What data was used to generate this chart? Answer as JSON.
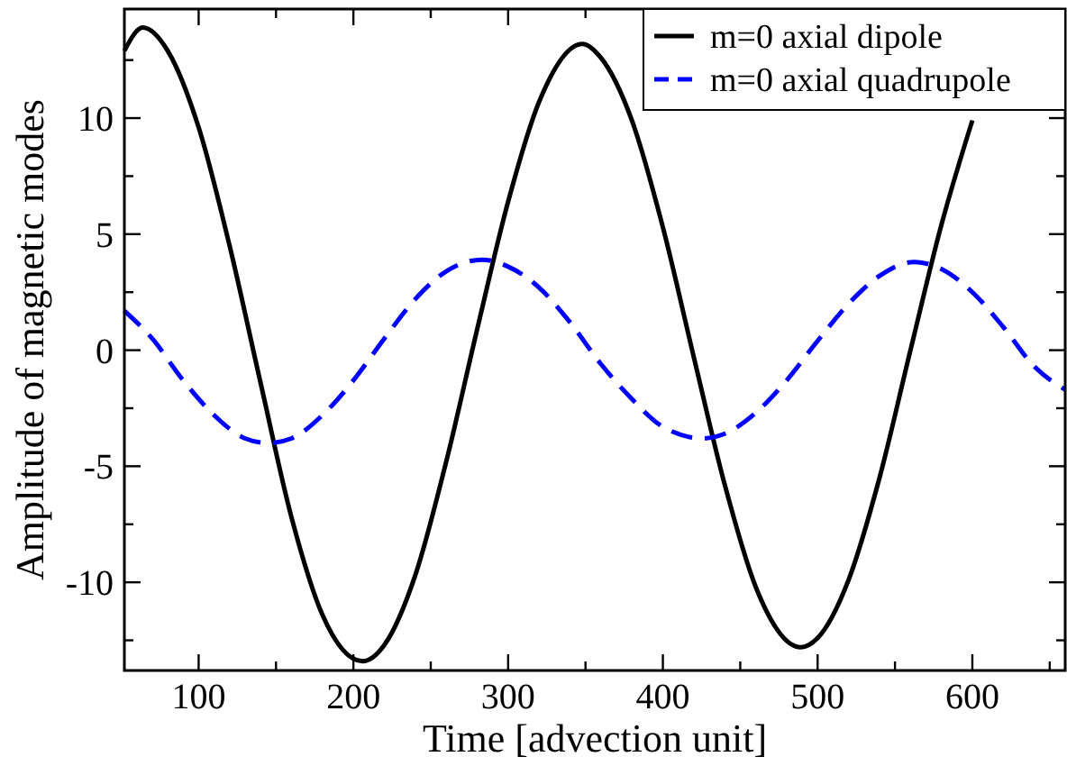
{
  "chart_data": {
    "type": "line",
    "xlabel": "Time [advection unit]",
    "ylabel": "Amplitude of magnetic modes",
    "xlim": [
      52,
      660
    ],
    "ylim": [
      -13.8,
      14.7
    ],
    "xticks": [
      100,
      {
        "value": 150,
        "label": null
      },
      200,
      {
        "value": 250,
        "label": null
      },
      300,
      {
        "value": 350,
        "label": null
      },
      400,
      {
        "value": 450,
        "label": null
      },
      500,
      {
        "value": 550,
        "label": null
      },
      600,
      {
        "value": 650,
        "label": null
      }
    ],
    "yticks": [
      {
        "value": -12.5,
        "label": null
      },
      -10,
      {
        "value": -7.5,
        "label": null
      },
      -5,
      {
        "value": -2.5,
        "label": null
      },
      0,
      {
        "value": 2.5,
        "label": null
      },
      5,
      {
        "value": 7.5,
        "label": null
      },
      10,
      {
        "value": 12.5,
        "label": null
      }
    ],
    "grid": false,
    "legend": "top right",
    "marker": "none",
    "series": [
      {
        "name": "m=0 axial dipole",
        "color": "#000000",
        "line_style": "solid",
        "x": [
          52,
          64,
          80,
          100,
          120,
          140,
          160,
          180,
          206,
          220,
          240,
          260,
          280,
          300,
          320,
          348,
          360,
          380,
          400,
          420,
          440,
          460,
          489,
          500,
          520,
          540,
          560,
          580,
          600
        ],
        "values": [
          12.9,
          13.9,
          12.9,
          9.6,
          4.5,
          -1.4,
          -7.2,
          -11.4,
          -13.4,
          -12.7,
          -9.7,
          -4.8,
          0.9,
          6.4,
          10.7,
          13.2,
          12.6,
          9.9,
          5.3,
          -0.3,
          -5.8,
          -10.2,
          -12.8,
          -12.4,
          -9.9,
          -5.5,
          0,
          5.4,
          9.9
        ]
      },
      {
        "name": "m=0 axial quadrupole",
        "color": "#0000ff",
        "line_style": "dashed",
        "x": [
          52,
          70,
          90,
          110,
          130,
          145,
          160,
          180,
          200,
          220,
          240,
          260,
          283,
          300,
          320,
          340,
          360,
          380,
          400,
          426,
          440,
          460,
          480,
          500,
          520,
          540,
          562,
          580,
          600,
          620,
          640,
          660
        ],
        "values": [
          1.7,
          0.5,
          -1.3,
          -2.8,
          -3.8,
          -4.0,
          -3.8,
          -2.8,
          -1.3,
          0.5,
          2.2,
          3.4,
          3.9,
          3.6,
          2.7,
          1.2,
          -0.6,
          -2.1,
          -3.3,
          -3.8,
          -3.6,
          -2.7,
          -1.3,
          0.4,
          2.0,
          3.2,
          3.8,
          3.5,
          2.5,
          1.0,
          -0.7,
          -1.7
        ]
      }
    ]
  }
}
